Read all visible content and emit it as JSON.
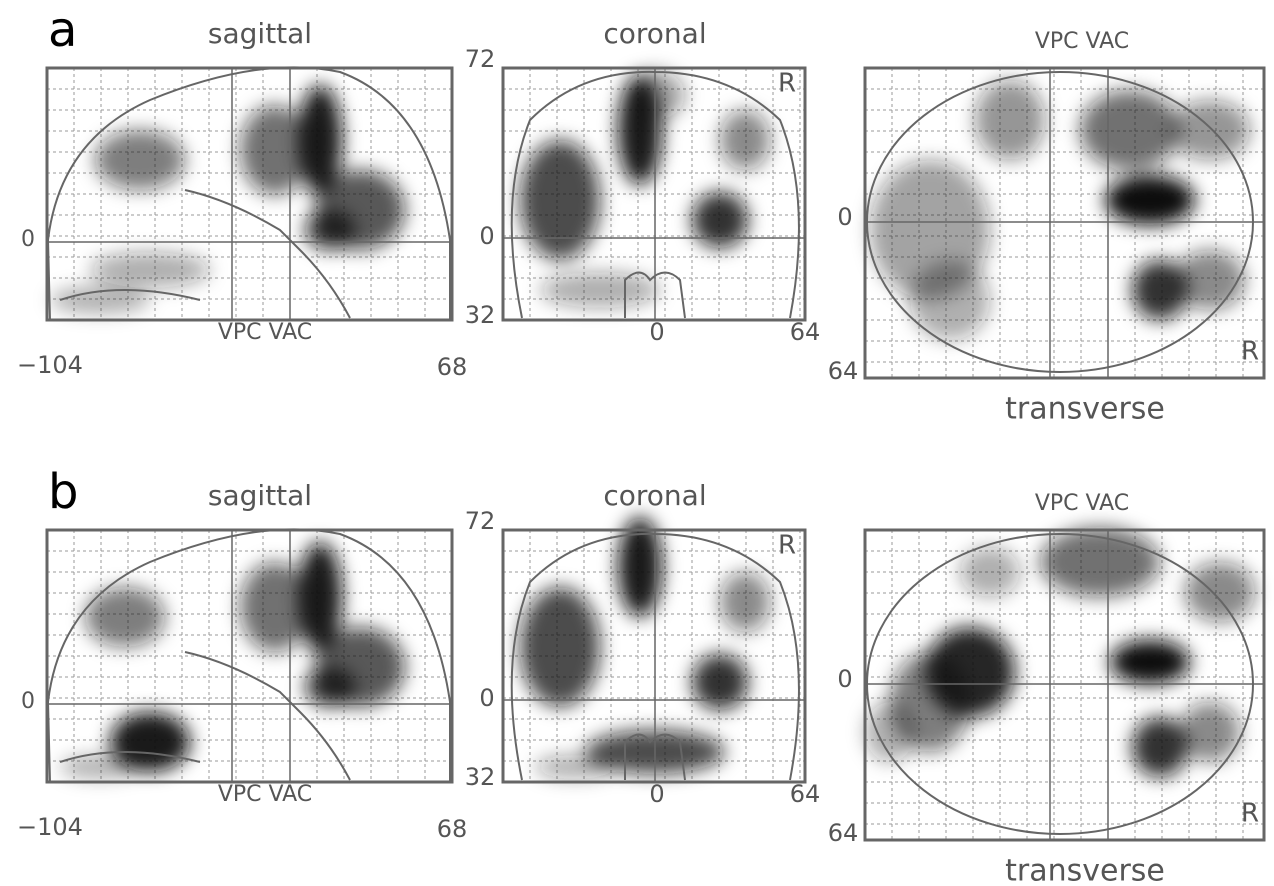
{
  "panels": [
    {
      "letter": "a",
      "sagittal": {
        "title": "sagittal",
        "axis_label": "VPC VAC",
        "y_zero": "0",
        "x_min": "−104",
        "x_max": "68"
      },
      "coronal": {
        "title": "coronal",
        "top": "72",
        "y_zero": "0",
        "bottom": "32",
        "x_zero": "0",
        "x_max": "64",
        "side": "R"
      },
      "transverse": {
        "title": "VPC VAC",
        "y_zero": "0",
        "bottom": "64",
        "side": "R",
        "caption": "transverse"
      }
    },
    {
      "letter": "b",
      "sagittal": {
        "title": "sagittal",
        "axis_label": "VPC VAC",
        "y_zero": "0",
        "x_min": "−104",
        "x_max": "68"
      },
      "coronal": {
        "title": "coronal",
        "top": "72",
        "y_zero": "0",
        "bottom": "32",
        "x_zero": "0",
        "x_max": "64",
        "side": "R"
      },
      "transverse": {
        "title": "VPC VAC",
        "y_zero": "0",
        "bottom": "64",
        "side": "R",
        "caption": "transverse"
      }
    }
  ]
}
